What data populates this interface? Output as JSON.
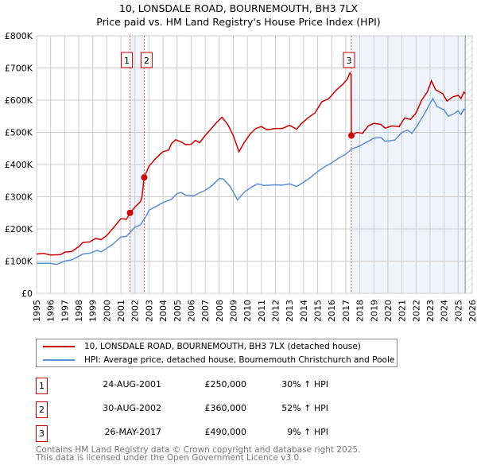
{
  "chart_data": {
    "type": "line",
    "title": "10, LONSDALE ROAD, BOURNEMOUTH, BH3 7LX",
    "subtitle": "Price paid vs. HM Land Registry's House Price Index (HPI)",
    "xlim": [
      1995,
      2026
    ],
    "ylim": [
      0,
      800000
    ],
    "x_ticks": [
      "1995",
      "1996",
      "1997",
      "1998",
      "1999",
      "2000",
      "2001",
      "2002",
      "2003",
      "2004",
      "2005",
      "2006",
      "2007",
      "2008",
      "2009",
      "2010",
      "2011",
      "2012",
      "2013",
      "2014",
      "2015",
      "2016",
      "2017",
      "2018",
      "2019",
      "2020",
      "2021",
      "2022",
      "2023",
      "2024",
      "2025",
      "2026"
    ],
    "y_ticks": [
      {
        "v": 0,
        "l": "£0"
      },
      {
        "v": 100000,
        "l": "£100K"
      },
      {
        "v": 200000,
        "l": "£200K"
      },
      {
        "v": 300000,
        "l": "£300K"
      },
      {
        "v": 400000,
        "l": "£400K"
      },
      {
        "v": 500000,
        "l": "£500K"
      },
      {
        "v": 600000,
        "l": "£600K"
      },
      {
        "v": 700000,
        "l": "£700K"
      },
      {
        "v": 800000,
        "l": "£800K"
      }
    ],
    "grid": true,
    "series": [
      {
        "name": "10, LONSDALE ROAD, BOURNEMOUTH, BH3 7LX (detached house)",
        "color": "#cc0000",
        "x": [
          1995,
          1995.5,
          1996,
          1996.7,
          1997,
          1997.5,
          1998,
          1998.3,
          1998.8,
          1999.2,
          1999.6,
          2000,
          2000.5,
          2001,
          2001.4,
          2001.65,
          2002,
          2002.4,
          2002.5,
          2002.66,
          2003,
          2003.5,
          2004,
          2004.4,
          2004.6,
          2004.9,
          2005.3,
          2005.6,
          2006,
          2006.3,
          2006.6,
          2007,
          2007.3,
          2007.8,
          2008.2,
          2008.6,
          2009,
          2009.4,
          2009.8,
          2010.2,
          2010.6,
          2011,
          2011.4,
          2012,
          2012.5,
          2013,
          2013.5,
          2013.8,
          2014.3,
          2014.8,
          2015.3,
          2015.8,
          2016.3,
          2016.8,
          2017.1,
          2017.3,
          2017.38,
          2017.4,
          2017.8,
          2018.2,
          2018.6,
          2019,
          2019.5,
          2019.8,
          2020.3,
          2020.8,
          2021.2,
          2021.6,
          2022,
          2022.4,
          2022.8,
          2023.1,
          2023.4,
          2023.9,
          2024.2,
          2024.6,
          2025,
          2025.2,
          2025.4,
          2025.5
        ],
        "y": [
          122,
          124,
          119,
          120,
          128,
          130,
          145,
          158,
          160,
          170,
          167,
          180,
          205,
          232,
          230,
          250,
          268,
          285,
          300,
          360,
          395,
          420,
          440,
          445,
          465,
          477,
          470,
          462,
          463,
          475,
          468,
          490,
          505,
          530,
          547,
          525,
          490,
          440,
          470,
          495,
          512,
          518,
          508,
          512,
          512,
          522,
          510,
          525,
          545,
          560,
          595,
          605,
          630,
          650,
          665,
          685,
          680,
          490,
          500,
          497,
          520,
          528,
          525,
          513,
          520,
          518,
          545,
          540,
          560,
          600,
          625,
          660,
          632,
          620,
          597,
          610,
          615,
          605,
          625,
          620
        ]
      },
      {
        "name": "HPI: Average price, detached house, Bournemouth Christchurch and Poole",
        "color": "#5b8fd4",
        "x": [
          1995,
          1996,
          1996.4,
          1997,
          1997.5,
          1998,
          1998.3,
          1998.8,
          1999.3,
          1999.6,
          2000,
          2000.5,
          2001,
          2001.4,
          2001.65,
          2002,
          2002.4,
          2002.8,
          2003,
          2003.5,
          2004,
          2004.6,
          2005,
          2005.3,
          2005.6,
          2006.2,
          2006.5,
          2007,
          2007.5,
          2008,
          2008.3,
          2008.8,
          2009.3,
          2009.8,
          2010.3,
          2010.7,
          2011.2,
          2012,
          2012.5,
          2013,
          2013.5,
          2014,
          2014.5,
          2015,
          2015.5,
          2016,
          2016.5,
          2017,
          2017.4,
          2018,
          2018.5,
          2019,
          2019.5,
          2019.8,
          2020.5,
          2021,
          2021.4,
          2021.7,
          2022,
          2022.5,
          2023,
          2023.2,
          2023.5,
          2024,
          2024.3,
          2024.7,
          2025,
          2025.2,
          2025.4,
          2025.5
        ],
        "y": [
          93,
          93,
          90,
          100,
          104,
          115,
          122,
          125,
          133,
          129,
          140,
          155,
          175,
          177,
          190,
          205,
          213,
          240,
          258,
          270,
          282,
          292,
          310,
          313,
          305,
          303,
          310,
          320,
          335,
          357,
          355,
          330,
          290,
          315,
          330,
          340,
          335,
          337,
          336,
          340,
          332,
          345,
          360,
          378,
          393,
          405,
          420,
          432,
          448,
          458,
          470,
          482,
          484,
          472,
          476,
          500,
          507,
          497,
          515,
          550,
          590,
          605,
          580,
          570,
          550,
          558,
          567,
          555,
          572,
          570
        ]
      }
    ],
    "y_unit": "thousands GBP",
    "sales": [
      {
        "id": "1",
        "date": "24-AUG-2001",
        "x": 2001.65,
        "price": "£250,000",
        "value": 250,
        "hpi": "30% ↑ HPI"
      },
      {
        "id": "2",
        "date": "30-AUG-2002",
        "x": 2002.66,
        "price": "£360,000",
        "value": 360,
        "hpi": "52% ↑ HPI"
      },
      {
        "id": "3",
        "date": "26-MAY-2017",
        "x": 2017.4,
        "price": "£490,000",
        "value": 490,
        "hpi": "9% ↑ HPI"
      }
    ],
    "shaded_ranges": [
      [
        2001.65,
        2002.66
      ],
      [
        2017.4,
        2025.5
      ]
    ],
    "forecast_from": 2025.5,
    "legend_position": "below"
  },
  "footer": [
    "Contains HM Land Registry data © Crown copyright and database right 2025.",
    "This data is licensed under the Open Government Licence v3.0."
  ]
}
